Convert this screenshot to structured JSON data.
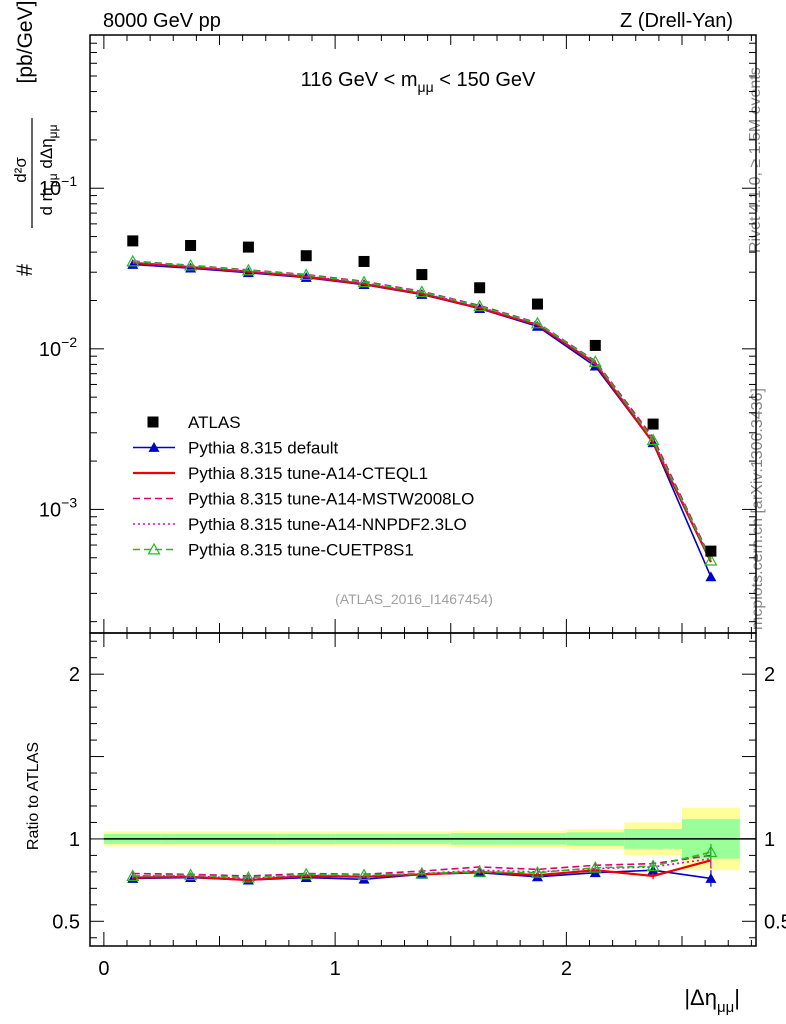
{
  "header": {
    "left": "8000 GeV pp",
    "right": "Z (Drell-Yan)"
  },
  "side_labels": {
    "rivet": "Rivet 4.1.0, ≥ 1.5M events",
    "mcplots": "mcplots.cern.ch [arXiv:1306.3436]"
  },
  "watermark": "(ATLAS_2016_I1467454)",
  "chart_data": [
    {
      "type": "scatter",
      "panel": "main",
      "title": "116 GeV < m_μμ < 150 GeV",
      "title_parts": {
        "pre": "116 GeV < m",
        "sub": "μμ",
        "post": " < 150 GeV"
      },
      "ylabel_parts": {
        "hash": "#",
        "num": "d²σ",
        "den_d1": "d m",
        "den_sub1": "μμ",
        "den_d2": " dΔη",
        "den_sub2": "μμ",
        "unit": "[pb/GeV]"
      },
      "yscale": "log",
      "ylim": [
        0.00017,
        0.9
      ],
      "y_ticks": [
        {
          "value": 0.1,
          "base": "10",
          "exp": "−1"
        },
        {
          "value": 0.01,
          "base": "10",
          "exp": "−2"
        },
        {
          "value": 0.001,
          "base": "10",
          "exp": "−3"
        }
      ],
      "xlim": [
        -0.06,
        2.82
      ],
      "x": [
        0.125,
        0.375,
        0.625,
        0.875,
        1.125,
        1.375,
        1.625,
        1.875,
        2.125,
        2.375,
        2.625
      ],
      "series": [
        {
          "name": "ATLAS",
          "color": "#000000",
          "marker": "square",
          "values": [
            0.047,
            0.044,
            0.043,
            0.038,
            0.035,
            0.029,
            0.024,
            0.019,
            0.0105,
            0.0034,
            0.00055
          ]
        },
        {
          "name": "Pythia 8.315 default",
          "color": "#0000cc",
          "marker": "triangle",
          "line": "solid",
          "values": [
            0.0335,
            0.0318,
            0.0298,
            0.0278,
            0.0251,
            0.0218,
            0.0178,
            0.0138,
            0.0078,
            0.0026,
            0.00038
          ]
        },
        {
          "name": "Pythia 8.315 tune-A14-CTEQL1",
          "color": "#ee0000",
          "line": "solid",
          "values": [
            0.0343,
            0.0323,
            0.0302,
            0.0281,
            0.0253,
            0.022,
            0.0179,
            0.0141,
            0.0081,
            0.0026,
            0.00047
          ]
        },
        {
          "name": "Pythia 8.315 tune-A14-MSTW2008LO",
          "color": "#dd0077",
          "line": "dashed",
          "values": [
            0.0352,
            0.0331,
            0.031,
            0.029,
            0.0263,
            0.0228,
            0.0186,
            0.0145,
            0.0084,
            0.0028,
            0.00049
          ]
        },
        {
          "name": "Pythia 8.315 tune-A14-NNPDF2.3LO",
          "color": "#dd00dd",
          "line": "dotted",
          "values": [
            0.0345,
            0.0325,
            0.0304,
            0.0284,
            0.0257,
            0.0223,
            0.0182,
            0.0142,
            0.0082,
            0.0027,
            0.00048
          ]
        },
        {
          "name": "Pythia 8.315 tune-CUETP8S1",
          "color": "#22bb22",
          "marker": "open-triangle",
          "line": "dashed",
          "values": [
            0.035,
            0.033,
            0.0308,
            0.0288,
            0.026,
            0.0226,
            0.0184,
            0.0144,
            0.0083,
            0.0027,
            0.00048
          ]
        }
      ]
    },
    {
      "type": "line",
      "panel": "ratio",
      "ylabel": "Ratio to ATLAS",
      "xlabel_parts": {
        "pre": "|Δη",
        "sub": "μμ",
        "post": "|"
      },
      "ylim": [
        0.35,
        2.25
      ],
      "y_ticks": [
        {
          "value": 0.5,
          "label": "0.5"
        },
        {
          "value": 1,
          "label": "1"
        },
        {
          "value": 2,
          "label": "2"
        }
      ],
      "x_ticks": [
        {
          "value": 0,
          "label": "0"
        },
        {
          "value": 1,
          "label": "1"
        },
        {
          "value": 2,
          "label": "2"
        }
      ],
      "xlim": [
        -0.06,
        2.82
      ],
      "x": [
        0.125,
        0.375,
        0.625,
        0.875,
        1.125,
        1.375,
        1.625,
        1.875,
        2.125,
        2.375,
        2.625
      ],
      "bin_edges": [
        0,
        0.25,
        0.5,
        0.75,
        1.0,
        1.25,
        1.5,
        1.75,
        2.0,
        2.25,
        2.5,
        2.75
      ],
      "band_inner": [
        0.03,
        0.03,
        0.03,
        0.03,
        0.03,
        0.03,
        0.035,
        0.035,
        0.04,
        0.06,
        0.12
      ],
      "band_outer": [
        0.045,
        0.045,
        0.045,
        0.045,
        0.045,
        0.045,
        0.05,
        0.05,
        0.06,
        0.1,
        0.19
      ],
      "band_inner_color": "#99ff99",
      "band_outer_color": "#ffff99",
      "series": [
        {
          "name": "Pythia 8.315 default",
          "color": "#0000cc",
          "marker": "triangle",
          "line": "solid",
          "values": [
            0.76,
            0.765,
            0.75,
            0.765,
            0.755,
            0.785,
            0.795,
            0.77,
            0.795,
            0.81,
            0.76
          ],
          "errors": [
            0.01,
            0.01,
            0.01,
            0.01,
            0.01,
            0.01,
            0.01,
            0.01,
            0.015,
            0.02,
            0.05
          ]
        },
        {
          "name": "Pythia 8.315 tune-A14-CTEQL1",
          "color": "#ee0000",
          "line": "solid",
          "values": [
            0.765,
            0.77,
            0.75,
            0.775,
            0.77,
            0.785,
            0.8,
            0.78,
            0.81,
            0.775,
            0.87
          ],
          "errors": [
            0.01,
            0.01,
            0.01,
            0.01,
            0.01,
            0.01,
            0.01,
            0.01,
            0.015,
            0.02,
            0.05
          ]
        },
        {
          "name": "Pythia 8.315 tune-A14-MSTW2008LO",
          "color": "#dd0077",
          "line": "dashed",
          "values": [
            0.79,
            0.785,
            0.775,
            0.79,
            0.785,
            0.805,
            0.83,
            0.815,
            0.84,
            0.85,
            0.9
          ],
          "errors": [
            0.01,
            0.01,
            0.01,
            0.01,
            0.01,
            0.01,
            0.01,
            0.01,
            0.015,
            0.02,
            0.05
          ]
        },
        {
          "name": "Pythia 8.315 tune-A14-NNPDF2.3LO",
          "color": "#dd00dd",
          "line": "dotted",
          "values": [
            0.775,
            0.775,
            0.76,
            0.78,
            0.775,
            0.79,
            0.81,
            0.8,
            0.82,
            0.83,
            0.88
          ],
          "errors": [
            0.01,
            0.01,
            0.01,
            0.01,
            0.01,
            0.01,
            0.01,
            0.01,
            0.015,
            0.02,
            0.05
          ]
        },
        {
          "name": "Pythia 8.315 tune-CUETP8S1",
          "color": "#22bb22",
          "marker": "open-triangle",
          "line": "dashed",
          "values": [
            0.775,
            0.78,
            0.765,
            0.785,
            0.78,
            0.79,
            0.8,
            0.795,
            0.825,
            0.835,
            0.92
          ],
          "errors": [
            0.01,
            0.01,
            0.01,
            0.01,
            0.01,
            0.01,
            0.01,
            0.01,
            0.015,
            0.02,
            0.05
          ]
        }
      ]
    }
  ]
}
